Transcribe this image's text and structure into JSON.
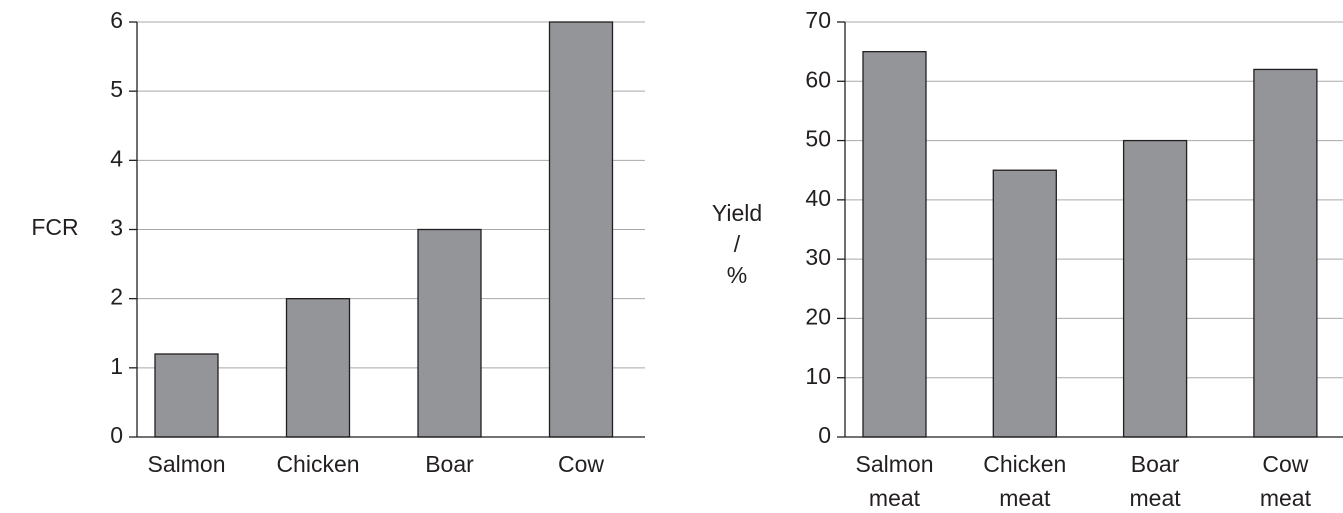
{
  "chart_data": [
    {
      "type": "bar",
      "y_label": "FCR",
      "categories": [
        "Salmon",
        "Chicken",
        "Boar",
        "Cow"
      ],
      "values": [
        1.2,
        2,
        3,
        6
      ],
      "color": "#939598",
      "ylim": [
        0,
        6
      ],
      "yticks": [
        0,
        1,
        2,
        3,
        4,
        5,
        6
      ],
      "grid": true
    },
    {
      "type": "bar",
      "y_label": "Yield / %",
      "categories": [
        "Salmon meat",
        "Chicken meat",
        "Boar meat",
        "Cow meat"
      ],
      "values": [
        65,
        45,
        50,
        62
      ],
      "color": "#939598",
      "ylim": [
        0,
        70
      ],
      "yticks": [
        0,
        10,
        20,
        30,
        40,
        50,
        60,
        70
      ],
      "grid": true
    }
  ]
}
